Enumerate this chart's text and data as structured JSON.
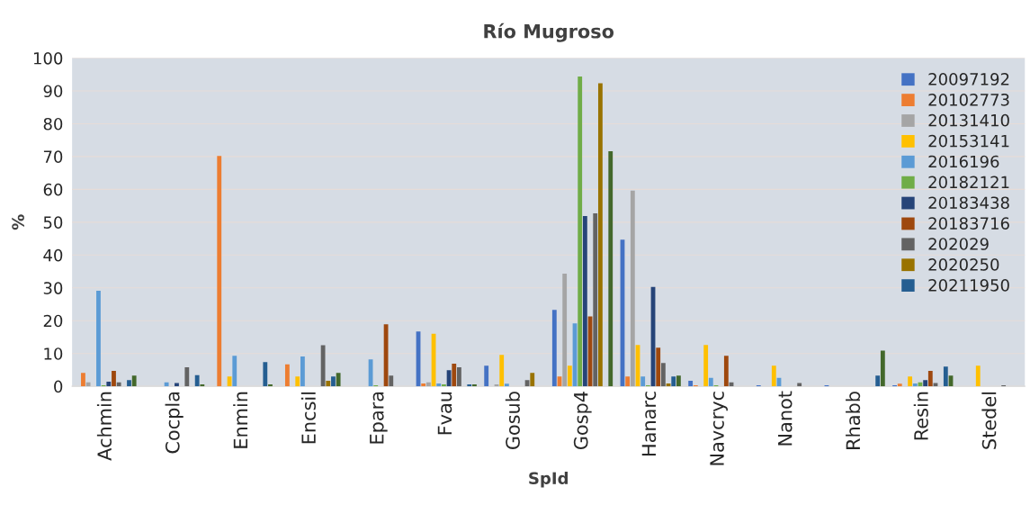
{
  "chart_data": {
    "type": "bar",
    "title": "Río Mugroso",
    "xlabel": "SpId",
    "ylabel": "%",
    "categories": [
      "Achmin",
      "Cocpla",
      "Enmin",
      "Encsil",
      "Epara",
      "Fvau",
      "Gosub",
      "Gosp4",
      "Hanarc",
      "Navcryc",
      "Nanot",
      "Rhabb",
      "Resin",
      "Stedel"
    ],
    "ylim": [
      0,
      100
    ],
    "yticks": [
      0,
      10,
      20,
      30,
      40,
      50,
      60,
      70,
      80,
      90,
      100
    ],
    "grid": "y",
    "legend": "top right",
    "series": [
      {
        "name": "20097192",
        "color": "#4472c4",
        "values": [
          0,
          0,
          0,
          0,
          0,
          16.7,
          6.3,
          23.3,
          44.7,
          1.7,
          0.3,
          0.3,
          0.3,
          0
        ]
      },
      {
        "name": "20102773",
        "color": "#ed7d31",
        "values": [
          4.1,
          0,
          70.2,
          6.7,
          0,
          0.9,
          0,
          3.0,
          3.0,
          0.3,
          0,
          0,
          0.8,
          0
        ]
      },
      {
        "name": "20131410",
        "color": "#a5a5a5",
        "values": [
          1.2,
          0,
          0,
          0,
          0,
          1.2,
          0.6,
          34.3,
          59.6,
          0,
          0,
          0,
          0,
          0
        ]
      },
      {
        "name": "20153141",
        "color": "#ffc000",
        "values": [
          0,
          0,
          3.0,
          3.0,
          0,
          16.0,
          9.6,
          6.3,
          12.6,
          12.6,
          6.3,
          0,
          3.0,
          6.3
        ]
      },
      {
        "name": "2016196",
        "color": "#5b9bd5",
        "values": [
          29.1,
          1.2,
          9.3,
          9.1,
          8.2,
          0.9,
          0.8,
          19.2,
          3.0,
          2.6,
          2.6,
          0,
          0.9,
          0
        ]
      },
      {
        "name": "20182121",
        "color": "#70ad47",
        "values": [
          0.3,
          0,
          0,
          0,
          0.3,
          0.6,
          0,
          94.4,
          0.3,
          0.3,
          0,
          0,
          1.2,
          0
        ]
      },
      {
        "name": "20183438",
        "color": "#264478",
        "values": [
          1.4,
          1.0,
          0,
          0,
          0,
          4.9,
          0,
          51.9,
          30.3,
          0,
          0,
          0,
          1.9,
          0
        ]
      },
      {
        "name": "20183716",
        "color": "#9e480e",
        "values": [
          4.7,
          0,
          0,
          0,
          18.9,
          6.9,
          0,
          21.3,
          11.8,
          9.3,
          0,
          0,
          4.7,
          0
        ]
      },
      {
        "name": "202029",
        "color": "#636363",
        "values": [
          1.2,
          5.8,
          0,
          12.5,
          3.3,
          5.8,
          1.9,
          52.7,
          7.1,
          1.2,
          1.0,
          0,
          1.0,
          0.3
        ]
      },
      {
        "name": "2020250",
        "color": "#997300",
        "values": [
          0,
          0,
          0,
          1.7,
          0,
          0,
          4.1,
          92.3,
          0.9,
          0,
          0,
          0,
          0,
          0
        ]
      },
      {
        "name": "20211950",
        "color": "#255e91",
        "values": [
          1.9,
          3.4,
          7.4,
          3.0,
          0,
          0.6,
          0,
          0,
          3.0,
          0,
          0,
          3.3,
          6.0,
          0
        ]
      },
      {
        "color": "#43682b",
        "values": [
          3.3,
          0.6,
          0.6,
          4.1,
          0,
          0.6,
          0,
          71.6,
          3.3,
          0,
          0,
          10.9,
          3.3,
          0
        ]
      }
    ]
  }
}
